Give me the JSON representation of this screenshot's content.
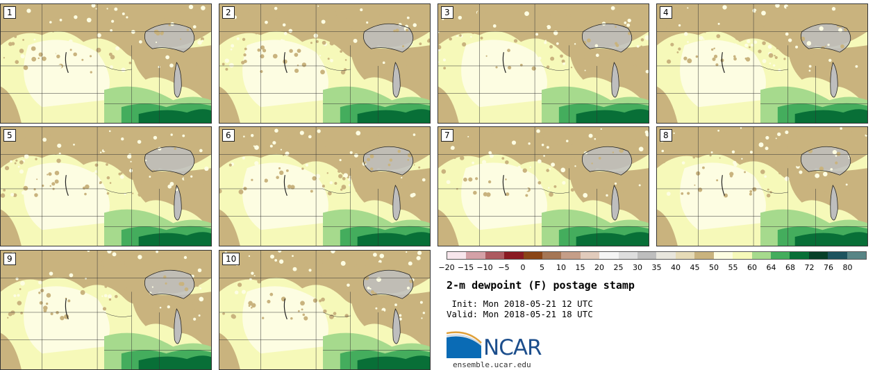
{
  "panels": [
    {
      "label": "1"
    },
    {
      "label": "2"
    },
    {
      "label": "3"
    },
    {
      "label": "4"
    },
    {
      "label": "5"
    },
    {
      "label": "6"
    },
    {
      "label": "7"
    },
    {
      "label": "8"
    },
    {
      "label": "9"
    },
    {
      "label": "10"
    }
  ],
  "colorbar": {
    "ticks": [
      "−20",
      "−15",
      "−10",
      "−5",
      "0",
      "5",
      "10",
      "15",
      "20",
      "25",
      "30",
      "35",
      "40",
      "45",
      "50",
      "55",
      "60",
      "64",
      "68",
      "72",
      "76",
      "80"
    ],
    "colors": [
      "#f7e6ec",
      "#d4a1a7",
      "#ad5a60",
      "#8a1a22",
      "#8a4516",
      "#a57655",
      "#c59e88",
      "#e1cbbc",
      "#f5f5f5",
      "#dedede",
      "#bebebe",
      "#e8e6dd",
      "#e6dbb7",
      "#c9b37e",
      "#fdfde2",
      "#f6f9b9",
      "#a6da8d",
      "#44ad5d",
      "#086f37",
      "#073f28",
      "#1d535e",
      "#588586"
    ]
  },
  "title": "2-m dewpoint (F) postage stamp",
  "init": " Init: Mon 2018-05-21 12 UTC",
  "valid": "Valid: Mon 2018-05-21 18 UTC",
  "logo": {
    "name": "ncar-logo",
    "text": "NCAR"
  },
  "website": "ensemble.ucar.edu",
  "colors": {
    "tan": "#c9b37e",
    "yellow": "#f6f9b9",
    "green": "#a6da8d",
    "dark_green": "#086f37",
    "gray": "#bebebe"
  }
}
